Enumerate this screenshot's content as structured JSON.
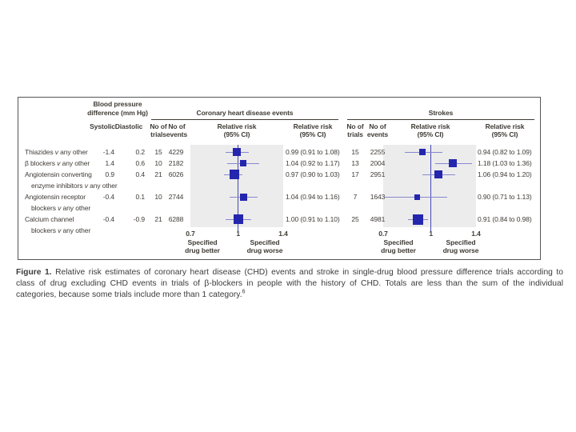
{
  "figure": {
    "bp_header_line1": "Blood pressure",
    "bp_header_line2": "difference (mm Hg)",
    "col_systolic": "Systolic",
    "col_diastolic": "Diastolic",
    "section_chd_title": "Coronary heart disease events",
    "section_strokes_title": "Strokes",
    "col_no_of": "No of",
    "col_trials": "trials",
    "col_events": "events",
    "col_rr_line1": "Relative risk",
    "col_rr_line2": "(95% CI)",
    "better_line1": "Specified",
    "better_line2": "drug better",
    "worse_line1": "Specified",
    "worse_line2": "drug worse"
  },
  "chart_data": {
    "type": "forest",
    "x_axis": {
      "scale": "log",
      "min": 0.7,
      "mid": 1,
      "max": 1.4,
      "tick_labels": [
        "0.7",
        "1",
        "1.4"
      ]
    },
    "outcomes": [
      "Coronary heart disease events",
      "Strokes"
    ],
    "columns": [
      "Systolic",
      "Diastolic",
      "No of trials",
      "No of events",
      "Relative risk (95% CI)"
    ],
    "rows": [
      {
        "label": "Thiazides v any other",
        "label_lines": [
          "Thiazides v any other"
        ],
        "systolic": "-1.4",
        "diastolic": "0.2",
        "chd": {
          "trials": "15",
          "events": "4229",
          "rr": 0.99,
          "ci_low": 0.91,
          "ci_high": 1.08,
          "rr_text": "0.99 (0.91 to 1.08)",
          "marker": 10
        },
        "strokes": {
          "trials": "15",
          "events": "2255",
          "rr": 0.94,
          "ci_low": 0.82,
          "ci_high": 1.09,
          "rr_text": "0.94 (0.82 to 1.09)",
          "marker": 8
        }
      },
      {
        "label": "β blockers v any other",
        "label_lines": [
          "β blockers v any other"
        ],
        "systolic": "1.4",
        "diastolic": "0.6",
        "chd": {
          "trials": "10",
          "events": "2182",
          "rr": 1.04,
          "ci_low": 0.92,
          "ci_high": 1.17,
          "rr_text": "1.04 (0.92 to 1.17)",
          "marker": 8
        },
        "strokes": {
          "trials": "13",
          "events": "2004",
          "rr": 1.18,
          "ci_low": 1.03,
          "ci_high": 1.36,
          "rr_text": "1.18 (1.03 to 1.36)",
          "marker": 10
        }
      },
      {
        "label": "Angiotensin converting enzyme inhibitors v any other",
        "label_lines": [
          "Angiotensin converting",
          "enzyme inhibitors v any other"
        ],
        "systolic": "0.9",
        "diastolic": "0.4",
        "chd": {
          "trials": "21",
          "events": "6026",
          "rr": 0.97,
          "ci_low": 0.9,
          "ci_high": 1.03,
          "rr_text": "0.97 (0.90 to 1.03)",
          "marker": 12
        },
        "strokes": {
          "trials": "17",
          "events": "2951",
          "rr": 1.06,
          "ci_low": 0.94,
          "ci_high": 1.2,
          "rr_text": "1.06 (0.94 to 1.20)",
          "marker": 10
        }
      },
      {
        "label": "Angiotensin receptor blockers v any other",
        "label_lines": [
          "Angiotensin receptor",
          "blockers v any other"
        ],
        "systolic": "-0.4",
        "diastolic": "0.1",
        "chd": {
          "trials": "10",
          "events": "2744",
          "rr": 1.04,
          "ci_low": 0.94,
          "ci_high": 1.16,
          "rr_text": "1.04 (0.94 to 1.16)",
          "marker": 9
        },
        "strokes": {
          "trials": "7",
          "events": "1643",
          "rr": 0.9,
          "ci_low": 0.71,
          "ci_high": 1.13,
          "rr_text": "0.90 (0.71 to 1.13)",
          "marker": 7
        }
      },
      {
        "label": "Calcium channel blockers v any other",
        "label_lines": [
          "Calcium channel",
          "blockers v any other"
        ],
        "systolic": "-0.4",
        "diastolic": "-0.9",
        "chd": {
          "trials": "21",
          "events": "6288",
          "rr": 1.0,
          "ci_low": 0.91,
          "ci_high": 1.1,
          "rr_text": "1.00 (0.91 to 1.10)",
          "marker": 12
        },
        "strokes": {
          "trials": "25",
          "events": "4981",
          "rr": 0.91,
          "ci_low": 0.84,
          "ci_high": 0.98,
          "rr_text": "0.91 (0.84 to 0.98)",
          "marker": 13
        }
      }
    ],
    "footer_labels": {
      "left": "Specified drug better",
      "right": "Specified drug worse"
    }
  },
  "caption": {
    "prefix": "Figure 1.",
    "lines": [
      " Relative risk estimates of coronary heart disease (CHD) events and stroke in single-drug blood pressure difference trials according to",
      "class of drug excluding CHD events in trials of β-blockers in people with the history of CHD. Totals are less than the sum of the individual",
      "categories, because some trials include more than 1 category."
    ],
    "ref_mark": "6"
  },
  "colors": {
    "marker_blue": "#2526ae",
    "ci_line": "#8888d0",
    "ref_line": "#4646b4",
    "plot_bg": "#ececec",
    "figure_text": "#3f3b35",
    "caption_text": "#3b3b3b",
    "border": "#555555"
  }
}
